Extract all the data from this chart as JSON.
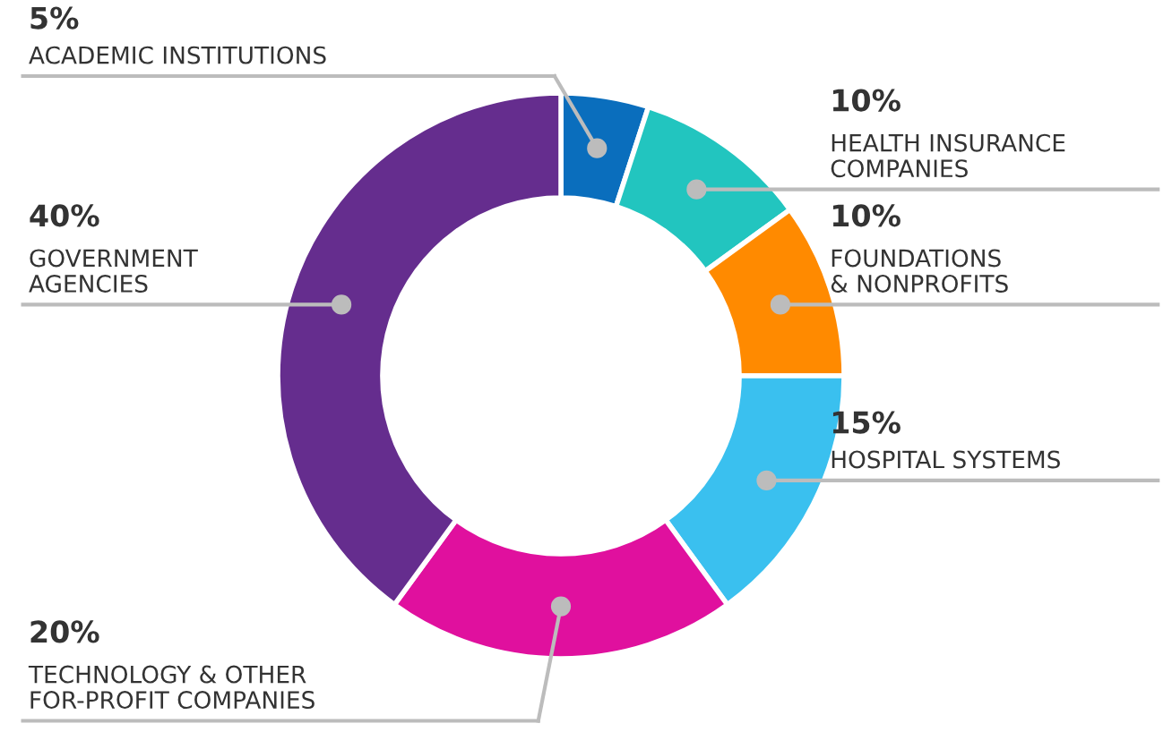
{
  "chart_data": {
    "type": "donut",
    "categories": [
      "ACADEMIC INSTITUTIONS",
      "HEALTH INSURANCE\nCOMPANIES",
      "FOUNDATIONS\n& NONPROFITS",
      "HOSPITAL SYSTEMS",
      "TECHNOLOGY & OTHER\nFOR-PROFIT COMPANIES",
      "GOVERNMENT\nAGENCIES"
    ],
    "values": [
      5,
      10,
      10,
      15,
      20,
      40
    ],
    "colors": [
      "#0a6ebd",
      "#22c5bf",
      "#ff8a00",
      "#3ac0ef",
      "#e0109e",
      "#652d8e"
    ],
    "value_labels": [
      "5%",
      "10%",
      "10%",
      "15%",
      "20%",
      "40%"
    ]
  }
}
